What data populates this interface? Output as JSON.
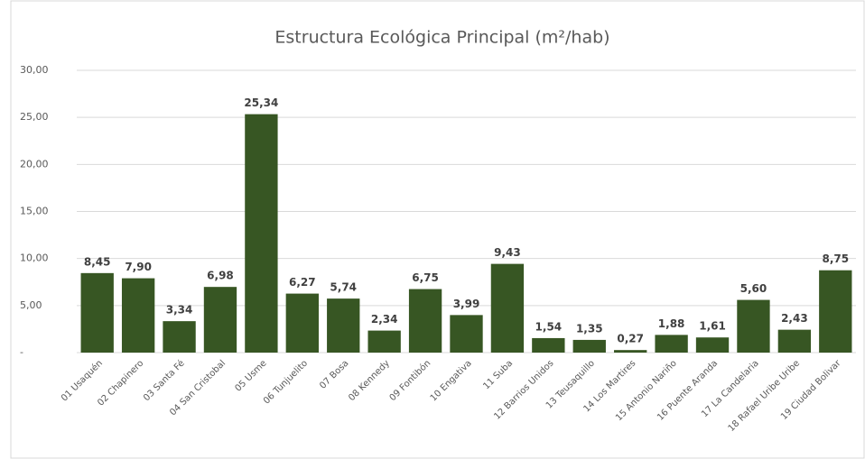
{
  "chart_data": {
    "type": "bar",
    "title": "Estructura Ecológica Principal (m²/hab)",
    "categories": [
      "01 Usaquén",
      "02 Chapinero",
      "03 Santa Fé",
      "04 San Cristobal",
      "05 Usme",
      "06 Tunjuelito",
      "07 Bosa",
      "08 Kennedy",
      "09 Fontibón",
      "10 Engativa",
      "11 Suba",
      "12 Barrios Unidos",
      "13 Teusaquillo",
      "14 Los Martires",
      "15 Antonio Nariño",
      "16 Puente Aranda",
      "17 La Candelaria",
      "18 Rafael Uribe Uribe",
      "19 Ciudad Bolivar"
    ],
    "values": [
      8.45,
      7.9,
      3.34,
      6.98,
      25.34,
      6.27,
      5.74,
      2.34,
      6.75,
      3.99,
      9.43,
      1.54,
      1.35,
      0.27,
      1.88,
      1.61,
      5.6,
      2.43,
      8.75
    ],
    "value_labels": [
      "8,45",
      "7,90",
      "3,34",
      "6,98",
      "25,34",
      "6,27",
      "5,74",
      "2,34",
      "6,75",
      "3,99",
      "9,43",
      "1,54",
      "1,35",
      "0,27",
      "1,88",
      "1,61",
      "5,60",
      "2,43",
      "8,75"
    ],
    "color": "#375623",
    "ylim": [
      0,
      30
    ],
    "yticks": [
      {
        "value": 0,
        "label": "-"
      },
      {
        "value": 5,
        "label": "5,00"
      },
      {
        "value": 10,
        "label": "10,00"
      },
      {
        "value": 15,
        "label": "15,00"
      },
      {
        "value": 20,
        "label": "20,00"
      },
      {
        "value": 25,
        "label": "25,00"
      },
      {
        "value": 30,
        "label": "30,00"
      }
    ],
    "grid": true
  }
}
